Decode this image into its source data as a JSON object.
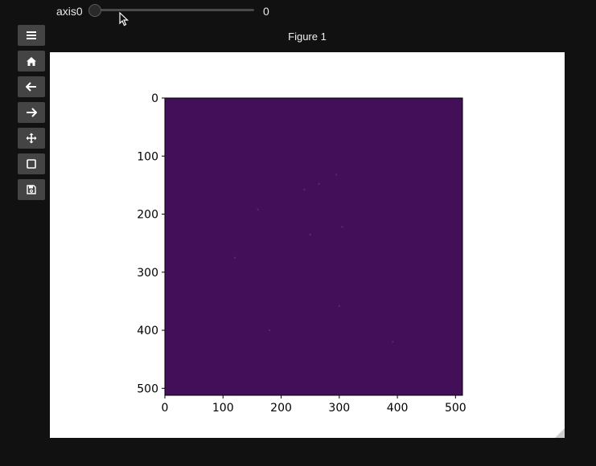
{
  "slider": {
    "label": "axis0",
    "value": "0",
    "position_fraction": 0.0
  },
  "toolbar": {
    "items": [
      {
        "name": "menu-icon",
        "tooltip": ""
      },
      {
        "name": "home-icon",
        "tooltip": ""
      },
      {
        "name": "back-arrow-icon",
        "tooltip": ""
      },
      {
        "name": "forward-arrow-icon",
        "tooltip": ""
      },
      {
        "name": "pan-icon",
        "tooltip": ""
      },
      {
        "name": "zoom-rect-icon",
        "tooltip": ""
      },
      {
        "name": "save-icon",
        "tooltip": ""
      }
    ]
  },
  "figure": {
    "title": "Figure 1"
  },
  "chart_data": {
    "type": "heatmap",
    "title": "",
    "xlabel": "",
    "ylabel": "",
    "image_size": [
      512,
      512
    ],
    "colormap": "viridis",
    "dominant_color": "#440f59",
    "xlim": [
      0,
      512
    ],
    "ylim": [
      512,
      0
    ],
    "x_ticks": [
      0,
      100,
      200,
      300,
      400,
      500
    ],
    "y_ticks": [
      0,
      100,
      200,
      300,
      400,
      500
    ],
    "x_tick_labels": [
      "0",
      "100",
      "200",
      "300",
      "400",
      "500"
    ],
    "y_tick_labels": [
      "0",
      "100",
      "200",
      "300",
      "400",
      "500"
    ],
    "sparse_points": [
      [
        265,
        148
      ],
      [
        240,
        158
      ],
      [
        305,
        222
      ],
      [
        392,
        420
      ],
      [
        180,
        400
      ],
      [
        295,
        132
      ],
      [
        160,
        192
      ],
      [
        250,
        235
      ],
      [
        120,
        275
      ],
      [
        300,
        358
      ]
    ],
    "grid": false,
    "legend": "none"
  }
}
